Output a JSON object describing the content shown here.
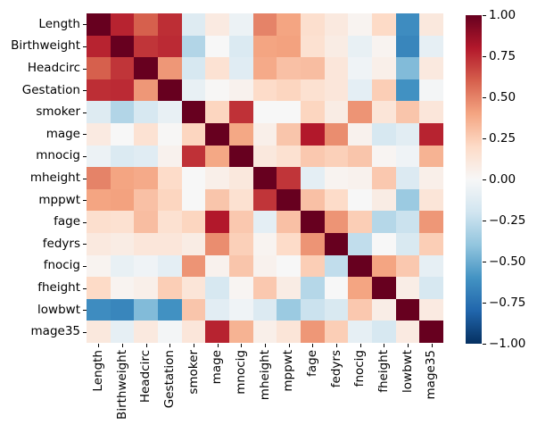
{
  "chart_data": {
    "type": "heatmap",
    "title": "",
    "xlabel": "",
    "ylabel": "",
    "labels": [
      "Length",
      "Birthweight",
      "Headcirc",
      "Gestation",
      "smoker",
      "mage",
      "mnocig",
      "mheight",
      "mppwt",
      "fage",
      "fedyrs",
      "fnocig",
      "fheight",
      "lowbwt",
      "mage35"
    ],
    "matrix": [
      [
        1.0,
        0.77,
        0.6,
        0.74,
        -0.13,
        0.09,
        -0.06,
        0.5,
        0.4,
        0.17,
        0.1,
        0.03,
        0.2,
        -0.63,
        0.11
      ],
      [
        0.77,
        1.0,
        0.72,
        0.75,
        -0.3,
        0.0,
        -0.15,
        0.4,
        0.41,
        0.16,
        0.08,
        -0.08,
        0.03,
        -0.66,
        -0.09
      ],
      [
        0.6,
        0.72,
        1.0,
        0.44,
        -0.17,
        0.15,
        -0.12,
        0.38,
        0.3,
        0.31,
        0.12,
        -0.04,
        0.06,
        -0.44,
        0.1
      ],
      [
        0.74,
        0.75,
        0.44,
        1.0,
        -0.08,
        0.01,
        0.04,
        0.19,
        0.22,
        0.16,
        0.12,
        -0.1,
        0.25,
        -0.61,
        -0.02
      ],
      [
        -0.13,
        -0.3,
        -0.17,
        -0.08,
        1.0,
        0.22,
        0.73,
        0.0,
        0.0,
        0.22,
        0.08,
        0.45,
        0.13,
        0.28,
        0.12
      ],
      [
        0.09,
        0.0,
        0.15,
        0.01,
        0.22,
        1.0,
        0.39,
        0.06,
        0.28,
        0.8,
        0.47,
        0.04,
        -0.17,
        -0.11,
        0.77
      ],
      [
        -0.06,
        -0.15,
        -0.12,
        0.04,
        0.73,
        0.39,
        1.0,
        0.11,
        0.16,
        0.27,
        0.24,
        0.28,
        0.02,
        -0.04,
        0.35
      ],
      [
        0.5,
        0.4,
        0.38,
        0.19,
        0.0,
        0.06,
        0.11,
        1.0,
        0.72,
        -0.1,
        0.03,
        0.04,
        0.27,
        -0.14,
        0.06
      ],
      [
        0.4,
        0.41,
        0.3,
        0.22,
        0.0,
        0.28,
        0.16,
        0.72,
        1.0,
        0.3,
        0.19,
        0.0,
        0.08,
        -0.37,
        0.13
      ],
      [
        0.17,
        0.16,
        0.31,
        0.16,
        0.22,
        0.8,
        0.27,
        -0.1,
        0.3,
        1.0,
        0.45,
        0.25,
        -0.29,
        -0.22,
        0.44
      ],
      [
        0.1,
        0.08,
        0.12,
        0.12,
        0.08,
        0.47,
        0.24,
        0.03,
        0.19,
        0.45,
        1.0,
        -0.25,
        0.0,
        -0.16,
        0.25
      ],
      [
        0.03,
        -0.08,
        -0.04,
        -0.1,
        0.45,
        0.04,
        0.28,
        0.04,
        0.0,
        0.25,
        -0.25,
        1.0,
        0.4,
        0.27,
        -0.09
      ],
      [
        0.2,
        0.03,
        0.06,
        0.25,
        0.13,
        -0.17,
        0.02,
        0.27,
        0.08,
        -0.29,
        0.0,
        0.4,
        1.0,
        0.07,
        -0.17
      ],
      [
        -0.63,
        -0.66,
        -0.44,
        -0.61,
        0.28,
        -0.11,
        -0.04,
        -0.14,
        -0.37,
        -0.22,
        -0.16,
        0.27,
        0.07,
        1.0,
        0.09
      ],
      [
        0.11,
        -0.09,
        0.1,
        -0.02,
        0.12,
        0.77,
        0.35,
        0.06,
        0.13,
        0.44,
        0.25,
        -0.09,
        -0.17,
        0.09,
        1.0
      ]
    ],
    "vmin": -1,
    "vmax": 1,
    "grid": false,
    "legend_position": "right-colorbar",
    "colormap": {
      "name": "RdBu_r",
      "anchors_low_to_high": [
        "#053061",
        "#2166ac",
        "#4393c3",
        "#92c5de",
        "#d1e5f0",
        "#f7f7f7",
        "#fddbc7",
        "#f4a582",
        "#d6604d",
        "#b2182b",
        "#67001f"
      ]
    },
    "colorbar_ticks": [
      "1.00",
      "0.75",
      "0.50",
      "0.25",
      "0.00",
      "−0.25",
      "−0.50",
      "−0.75",
      "−1.00"
    ],
    "colorbar_tick_values": [
      1.0,
      0.75,
      0.5,
      0.25,
      0.0,
      -0.25,
      -0.5,
      -0.75,
      -1.0
    ]
  },
  "figure": {
    "background_color": "#ffffff",
    "tick_color": "#000000",
    "label_color": "#000000"
  }
}
